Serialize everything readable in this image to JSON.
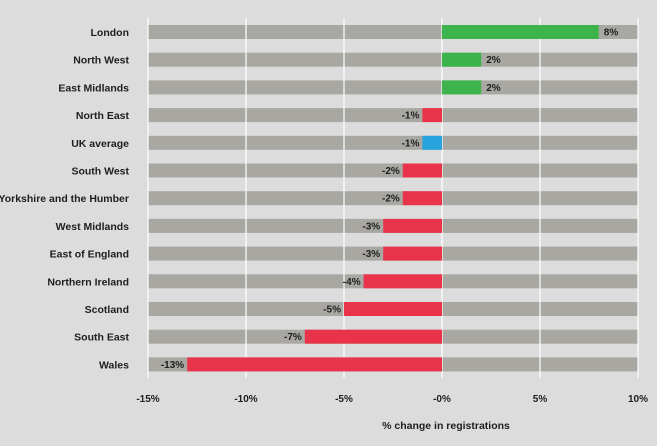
{
  "chart_data": {
    "type": "bar",
    "orientation": "horizontal",
    "categories": [
      "London",
      "North West",
      "East Midlands",
      "North East",
      "UK average",
      "South West",
      "Yorkshire and the Humber",
      "West Midlands",
      "East of England",
      "Northern Ireland",
      "Scotland",
      "South East",
      "Wales"
    ],
    "values": [
      8,
      2,
      2,
      -1,
      -1,
      -2,
      -2,
      -3,
      -3,
      -4,
      -5,
      -7,
      -13
    ],
    "value_labels": [
      "8%",
      "2%",
      "2%",
      "-1%",
      "-1%",
      "-2%",
      "-2%",
      "-3%",
      "-3%",
      "-4%",
      "-5%",
      "-7%",
      "-13%"
    ],
    "xlim": [
      -15,
      10
    ],
    "x_ticks": [
      -15,
      -10,
      -5,
      0,
      5,
      10
    ],
    "x_tick_labels": [
      "-15%",
      "-10%",
      "-5%",
      "-0%",
      "5%",
      "10%"
    ],
    "xlabel": "% change in registrations",
    "ylabel": "",
    "grid": true,
    "legend": "none",
    "highlight_category": "UK average",
    "colors": {
      "background": "#dcdcdc",
      "track": "#a9a7a2",
      "positive": "#3cb44b",
      "negative": "#e8334a",
      "highlight": "#27a3dd",
      "gridline": "#ffffff",
      "text": "#1e1e1e"
    }
  }
}
